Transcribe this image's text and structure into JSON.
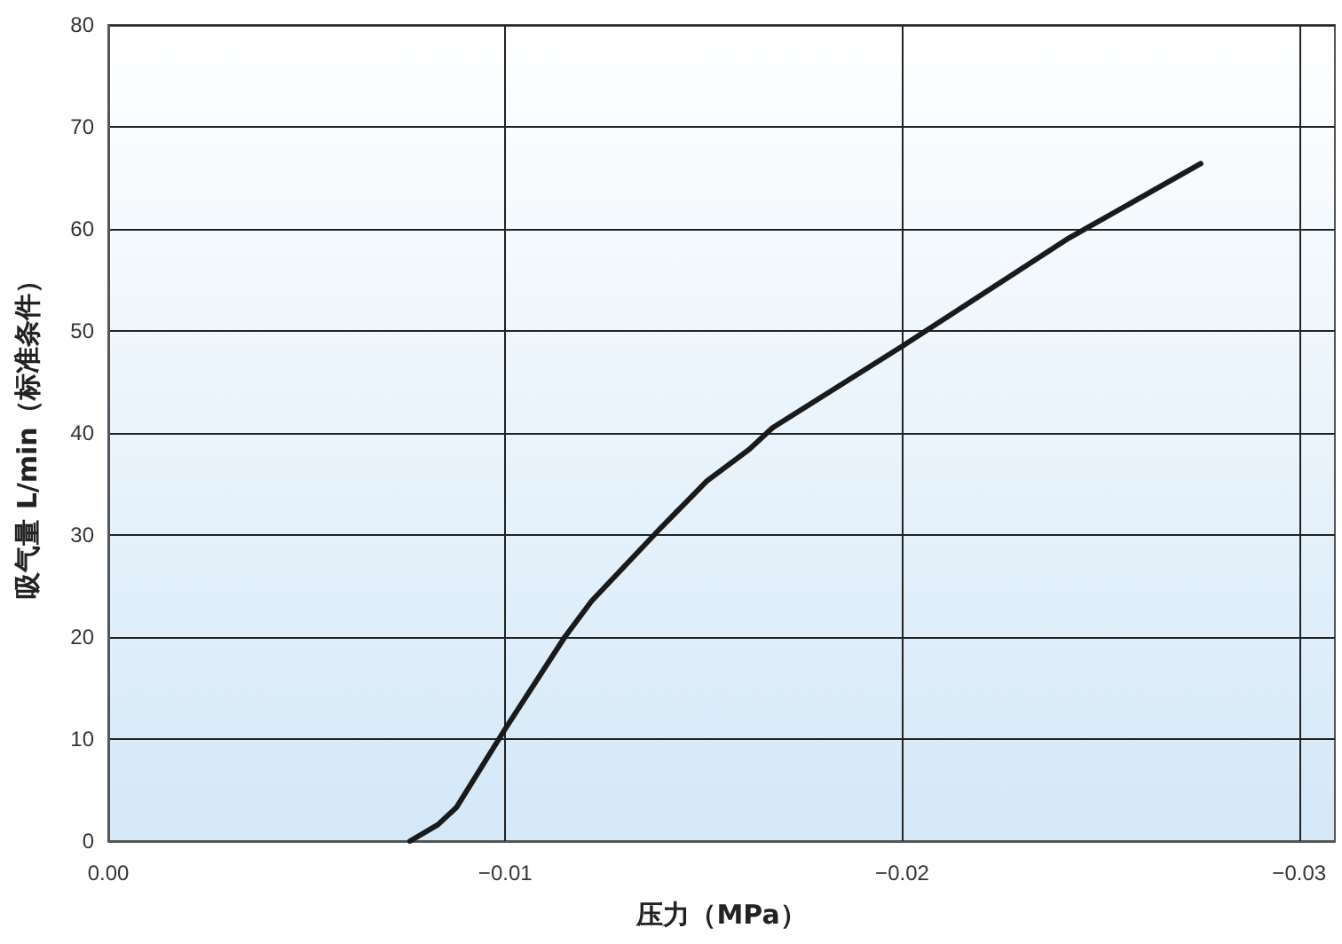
{
  "chart_data": {
    "type": "line",
    "xlabel": "压力（MPa）",
    "ylabel": "吸气量 L/min（标准条件）",
    "xlim": [
      0,
      -0.0309
    ],
    "xticks": [
      {
        "value": 0,
        "label": "0.00"
      },
      {
        "value": -0.01,
        "label": "−0.01"
      },
      {
        "value": -0.02,
        "label": "−0.02"
      },
      {
        "value": -0.03,
        "label": "−0.03"
      }
    ],
    "ylim": [
      0,
      80
    ],
    "yticks": [
      0,
      10,
      20,
      30,
      40,
      50,
      60,
      70,
      80
    ],
    "grid": true,
    "marker": "none",
    "line_style": "solid",
    "series": [
      {
        "color": "#1a1a1a",
        "x": [
          -0.0076,
          -0.0083,
          -0.00877,
          -0.01,
          -0.0115,
          -0.01217,
          -0.01387,
          -0.01508,
          -0.01615,
          -0.01673,
          -0.02,
          -0.0242,
          -0.02752
        ],
        "values": [
          0,
          1.6,
          3.3,
          11,
          20,
          23.5,
          30.5,
          35.3,
          38.4,
          40.5,
          48.5,
          59.1,
          66.4
        ]
      }
    ]
  }
}
